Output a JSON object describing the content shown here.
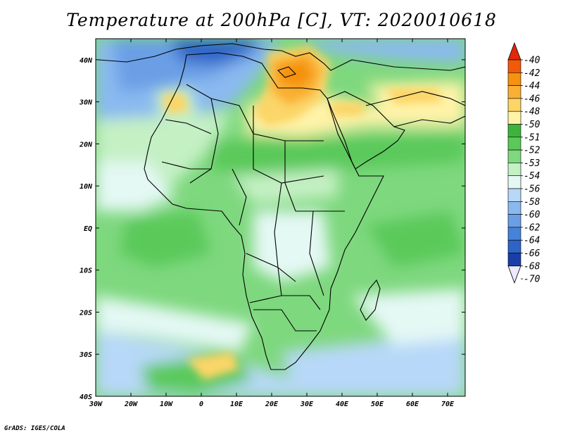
{
  "title": "Temperature at 200hPa [C], VT: 2020010618",
  "credit": "GrADS: IGES/COLA",
  "map": {
    "lon_ticks": [
      "30W",
      "20W",
      "10W",
      "0",
      "10E",
      "20E",
      "30E",
      "40E",
      "50E",
      "60E",
      "70E"
    ],
    "lat_ticks": [
      "40N",
      "30N",
      "20N",
      "10N",
      "EQ",
      "10S",
      "20S",
      "30S",
      "40S"
    ],
    "lon_range": [
      -30,
      75
    ],
    "lat_range": [
      -40,
      45
    ]
  },
  "colorbar": {
    "labels": [
      "-40",
      "-42",
      "-44",
      "-46",
      "-48",
      "-50",
      "-51",
      "-52",
      "-53",
      "-54",
      "-56",
      "-58",
      "-60",
      "-62",
      "-64",
      "-66",
      "-68",
      "-70"
    ],
    "colors": [
      "#e2280a",
      "#f25a0a",
      "#f5920f",
      "#fab033",
      "#fbd568",
      "#fff3a8",
      "#3cb43c",
      "#5ac95a",
      "#7ed87e",
      "#c4f0c4",
      "#e4f8f4",
      "#b7d8f8",
      "#8ab9f0",
      "#6a9fe6",
      "#4682d8",
      "#2d64c8",
      "#1a3ea8",
      "#0a1a78"
    ],
    "top_color": "#e2280a",
    "bottom_color": "#ede9ff"
  }
}
